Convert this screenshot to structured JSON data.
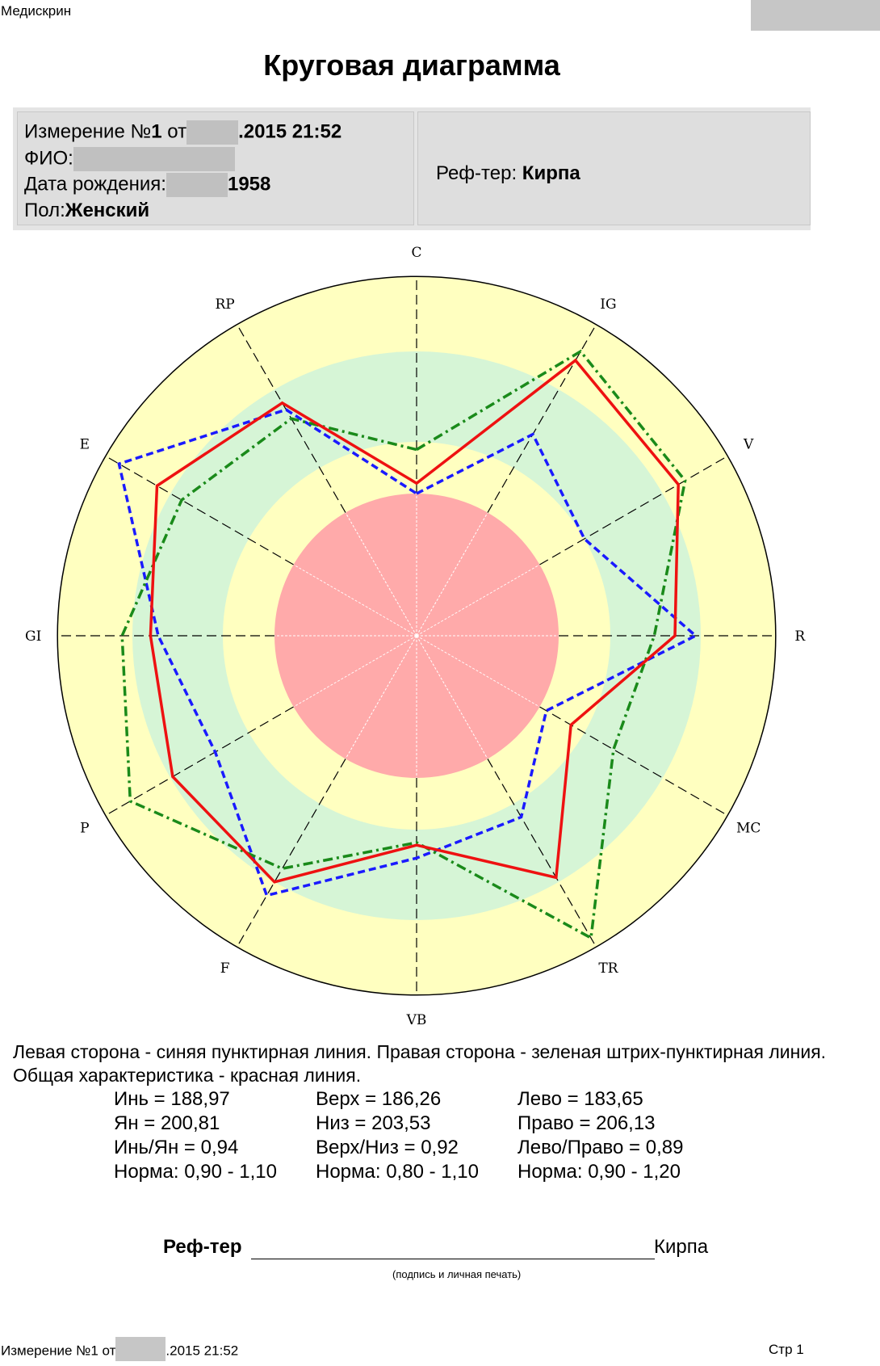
{
  "header": {
    "app_name": "Медискрин",
    "title": "Круговая диаграмма"
  },
  "info": {
    "measurement_prefix": "Измерение №",
    "measurement_number": "1",
    "measurement_from": "от",
    "measurement_date": ".2015 21:52",
    "fio_label": "ФИО:",
    "birth_label": "Дата рождения:",
    "birth_year": "1958",
    "sex_label": "Пол:",
    "sex_value": "Женский",
    "ref_label": "Реф-тер:",
    "ref_value": "Кирпа"
  },
  "chart_data": {
    "type": "radar",
    "axes": [
      "C",
      "IG",
      "V",
      "R",
      "MC",
      "TR",
      "VB",
      "F",
      "P",
      "GI",
      "E",
      "RP"
    ],
    "rlim": [
      0,
      1.5
    ],
    "zones": [
      {
        "from": 0,
        "to": 0.55,
        "color": "#ffaaaa"
      },
      {
        "from": 0.55,
        "to": 0.75,
        "color": "#ffffc0"
      },
      {
        "from": 0.75,
        "to": 1.1,
        "color": "#d6f5d6"
      },
      {
        "from": 1.1,
        "to": 1.3,
        "color": "#ffffc0"
      },
      {
        "from": 1.3,
        "to": 1.39,
        "color": "#ffffc0"
      }
    ],
    "series": [
      {
        "style": "dashed",
        "color": "#1a1aff",
        "values": [
          0.55,
          0.9,
          0.75,
          1.08,
          0.58,
          0.81,
          0.86,
          1.16,
          0.9,
          1.0,
          1.33,
          1.01
        ]
      },
      {
        "style": "dashdot",
        "color": "#1a8a1a",
        "values": [
          0.72,
          1.27,
          1.2,
          0.92,
          0.88,
          1.35,
          0.8,
          1.04,
          1.28,
          1.14,
          1.05,
          0.97
        ]
      },
      {
        "style": "solid",
        "color": "#ee1111",
        "values": [
          0.59,
          1.23,
          1.17,
          1.0,
          0.69,
          1.08,
          0.81,
          1.1,
          1.09,
          1.03,
          1.16,
          1.04
        ]
      }
    ],
    "grid": true
  },
  "legend": {
    "text": "Левая сторона - синяя пунктирная линия. Правая сторона - зеленая штрих-пунктирная линия. Общая характеристика - красная линия."
  },
  "stats": [
    [
      "Инь = 188,97",
      "Верх = 186,26",
      "Лево = 183,65"
    ],
    [
      "Ян = 200,81",
      "Низ = 203,53",
      "Право = 206,13"
    ],
    [
      "Инь/Ян = 0,94",
      "Верх/Низ = 0,92",
      "Лево/Право = 0,89"
    ],
    [
      "Норма: 0,90 - 1,10",
      "Норма: 0,80 - 1,10",
      "Норма: 0,90 - 1,20"
    ]
  ],
  "signature": {
    "label": "Реф-тер",
    "name": "Кирпа",
    "hint": "(подпись и личная печать)"
  },
  "footer": {
    "measurement_left": "Измерение №1 от",
    "measurement_right": ".2015 21:52",
    "page": "Стр 1"
  }
}
